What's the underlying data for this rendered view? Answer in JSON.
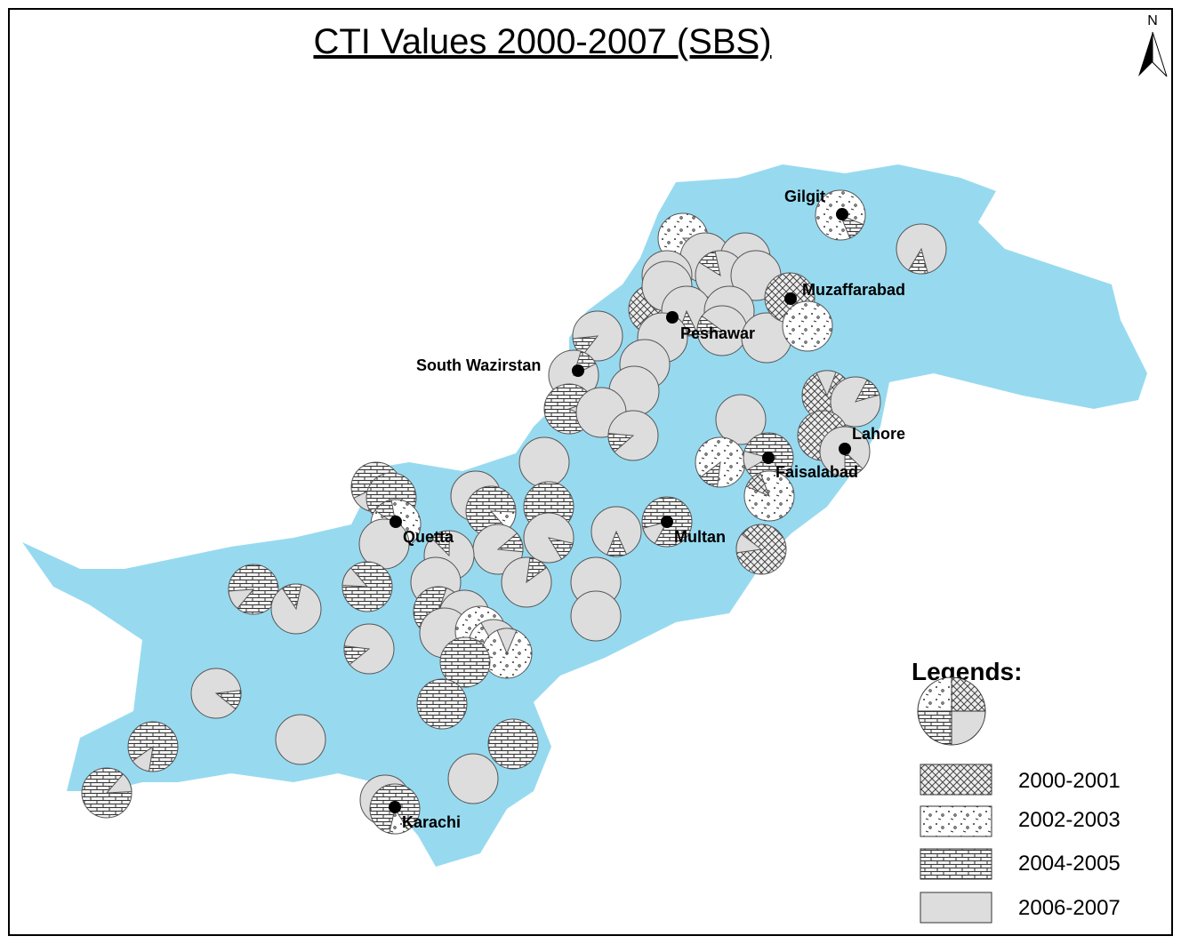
{
  "title": "CTI Values 2000-2007 (SBS)",
  "north_label": "N",
  "cities": [
    {
      "label": "Gilgit"
    },
    {
      "label": "Muzaffarabad"
    },
    {
      "label": "Peshawar"
    },
    {
      "label": "South Wazirstan"
    },
    {
      "label": "Lahore"
    },
    {
      "label": "Faisalabad"
    },
    {
      "label": "Multan"
    },
    {
      "label": "Quetta"
    },
    {
      "label": "Karachi"
    }
  ],
  "legend": {
    "title": "Legends:",
    "items": [
      {
        "label": "2000-2001"
      },
      {
        "label": "2002-2003"
      },
      {
        "label": "2004-2005"
      },
      {
        "label": "2006-2007"
      }
    ]
  }
}
